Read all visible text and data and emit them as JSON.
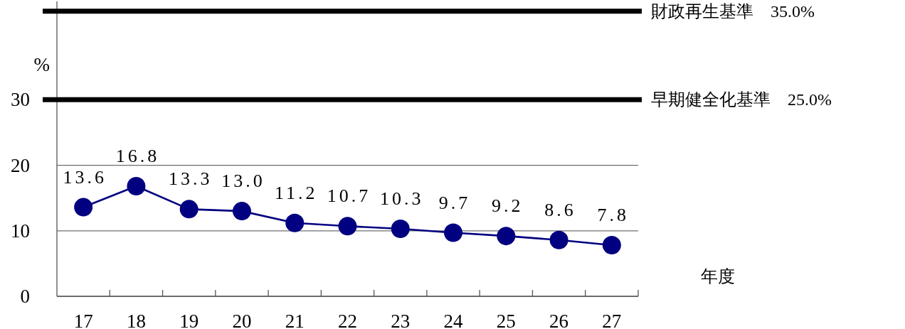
{
  "chart_data": {
    "type": "line",
    "xlabel": "年度",
    "ylabel": "%",
    "categories": [
      "17",
      "18",
      "19",
      "20",
      "21",
      "22",
      "23",
      "24",
      "25",
      "26",
      "27"
    ],
    "series": [
      {
        "color": "#000080",
        "values": [
          13.6,
          16.8,
          13.3,
          13.0,
          11.2,
          10.7,
          10.3,
          9.7,
          9.2,
          8.6,
          7.8
        ],
        "value_labels": [
          "13.6",
          "16.8",
          "13.3",
          "13.0",
          "11.2",
          "10.7",
          "10.3",
          "9.7",
          "9.2",
          "8.6",
          "7.8"
        ]
      }
    ],
    "marker": "circle",
    "line_style": "solid",
    "ylim": [
      0,
      45
    ],
    "yticks": [
      0,
      10,
      20,
      30
    ],
    "grid": "y",
    "ref_lines": [
      {
        "axis": "y",
        "value": 43.5,
        "label": "財政再生基準　35.0%",
        "color": "#000000"
      },
      {
        "axis": "y",
        "value": 30,
        "label": "早期健全化基準　25.0%",
        "color": "#000000"
      }
    ]
  }
}
